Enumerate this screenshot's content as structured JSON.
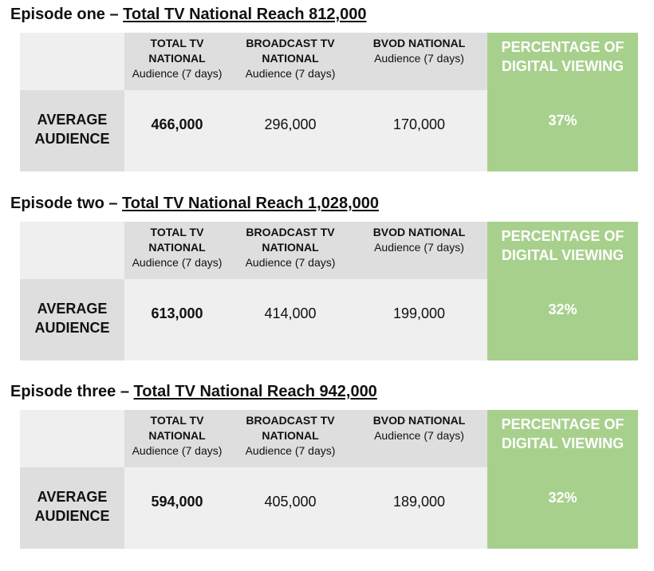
{
  "episodes": [
    {
      "name": "Episode one",
      "separator": "–",
      "reach": "Total TV National Reach 812,000",
      "row_label": "AVERAGE AUDIENCE",
      "columns": [
        {
          "title": "TOTAL TV NATIONAL",
          "sub": "Audience (7 days)"
        },
        {
          "title": "BROADCAST TV NATIONAL",
          "sub": "Audience (7 days)"
        },
        {
          "title": "BVOD NATIONAL",
          "sub": "Audience (7 days)"
        }
      ],
      "pct_header": "PERCENTAGE OF DIGITAL VIEWING",
      "values": [
        "466,000",
        "296,000",
        "170,000"
      ],
      "pct_value": "37%"
    },
    {
      "name": "Episode two",
      "separator": "–",
      "reach": "Total TV National Reach 1,028,000",
      "row_label": "AVERAGE AUDIENCE",
      "columns": [
        {
          "title": "TOTAL TV NATIONAL",
          "sub": "Audience (7 days)"
        },
        {
          "title": "BROADCAST TV NATIONAL",
          "sub": "Audience (7 days)"
        },
        {
          "title": "BVOD NATIONAL",
          "sub": "Audience (7 days)"
        }
      ],
      "pct_header": "PERCENTAGE OF DIGITAL VIEWING",
      "values": [
        "613,000",
        "414,000",
        "199,000"
      ],
      "pct_value": "32%"
    },
    {
      "name": "Episode three",
      "separator": "–",
      "reach": "Total TV National Reach 942,000",
      "row_label": "AVERAGE AUDIENCE",
      "columns": [
        {
          "title": "TOTAL TV NATIONAL",
          "sub": "Audience (7 days)"
        },
        {
          "title": "BROADCAST TV NATIONAL",
          "sub": "Audience (7 days)"
        },
        {
          "title": "BVOD NATIONAL",
          "sub": "Audience (7 days)"
        }
      ],
      "pct_header": "PERCENTAGE OF DIGITAL VIEWING",
      "values": [
        "594,000",
        "405,000",
        "189,000"
      ],
      "pct_value": "32%"
    }
  ],
  "colors": {
    "header_gray": "#dedede",
    "light_gray": "#efefef",
    "accent_green": "#a8d08d",
    "text": "#111111"
  }
}
